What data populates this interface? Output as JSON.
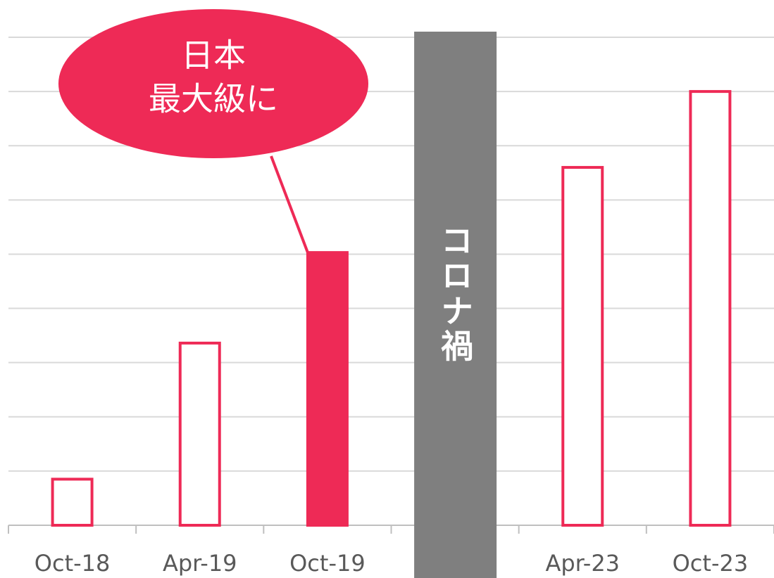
{
  "chart_data": {
    "type": "bar",
    "categories": [
      "Oct-18",
      "Apr-19",
      "Oct-19",
      null,
      "Apr-23",
      "Oct-23"
    ],
    "values": [
      0.85,
      3.36,
      5.03,
      null,
      6.6,
      8.0
    ],
    "color": "#ee2a56",
    "fill_colors": [
      "#ffffff",
      "#ffffff",
      "#ee2a56",
      null,
      "#ffffff",
      "#ffffff"
    ],
    "ylim": [
      0,
      9
    ],
    "yticks": [
      0,
      1,
      2,
      3,
      4,
      5,
      6,
      7,
      8,
      9
    ],
    "grid": true,
    "annotations": [
      {
        "lines": [
          "日本",
          "最大級に"
        ]
      },
      {
        "text": "コロナ禍"
      }
    ]
  }
}
